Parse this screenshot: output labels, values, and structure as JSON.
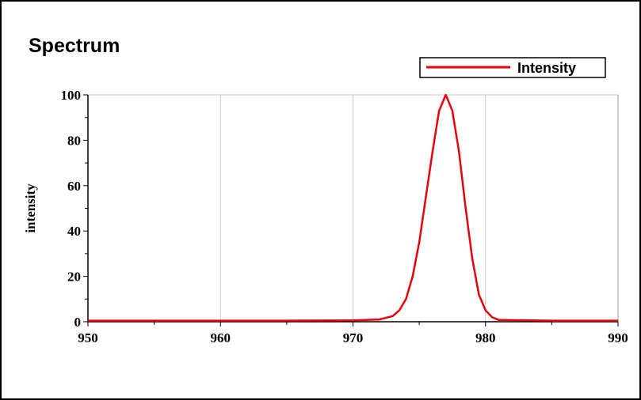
{
  "colors": {
    "series": "#e8000b",
    "grid": "#c8c8c8",
    "axis": "#000000"
  },
  "chart_data": {
    "type": "line",
    "title": "Spectrum",
    "xlabel": "",
    "ylabel": "intensity",
    "xlim": [
      950,
      990
    ],
    "ylim": [
      0,
      100
    ],
    "x_ticks": [
      950,
      960,
      970,
      980,
      990
    ],
    "y_ticks": [
      0,
      20,
      40,
      60,
      80,
      100
    ],
    "grid": true,
    "legend_position": "top-right",
    "series": [
      {
        "name": "Intensity",
        "color": "#e8000b",
        "x": [
          950,
          955,
          960,
          965,
          970,
          972,
          973,
          973.5,
          974,
          974.5,
          975,
          975.5,
          976,
          976.5,
          977,
          977.5,
          978,
          978.5,
          979,
          979.5,
          980,
          980.5,
          981,
          985,
          990
        ],
        "y": [
          0.5,
          0.5,
          0.5,
          0.5,
          0.6,
          1,
          2.5,
          5,
          10,
          20,
          35,
          55,
          75,
          93,
          100,
          93,
          75,
          50,
          28,
          12,
          5,
          2,
          0.8,
          0.5,
          0.5
        ]
      }
    ]
  }
}
